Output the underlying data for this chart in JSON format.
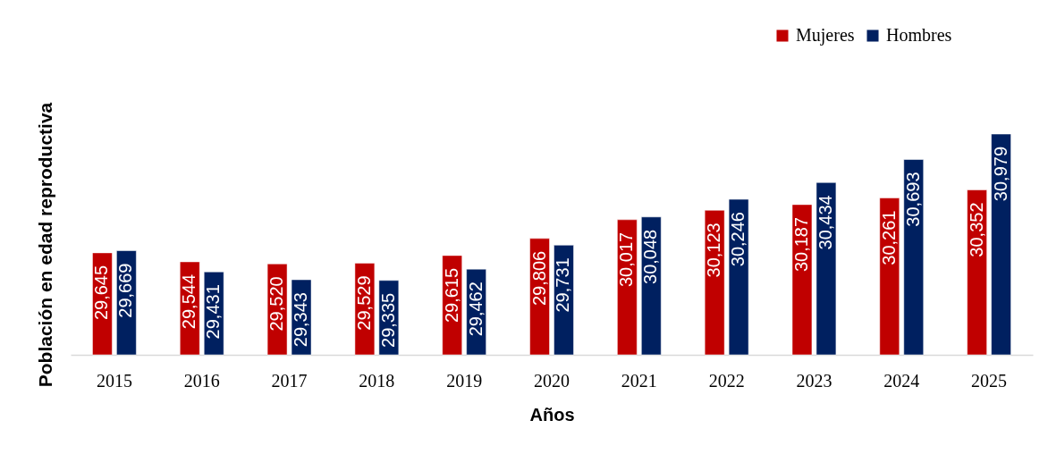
{
  "chart_data": {
    "type": "bar",
    "xlabel": "Años",
    "ylabel": "Población en edad reproductiva",
    "categories": [
      "2015",
      "2016",
      "2017",
      "2018",
      "2019",
      "2020",
      "2021",
      "2022",
      "2023",
      "2024",
      "2025"
    ],
    "series": [
      {
        "name": "Mujeres",
        "color": "#c00000",
        "values": [
          29645,
          29544,
          29520,
          29529,
          29615,
          29806,
          30017,
          30123,
          30187,
          30261,
          30352
        ],
        "value_labels": [
          "29,645",
          "29,544",
          "29,520",
          "29,529",
          "29,615",
          "29,806",
          "30,017",
          "30,123",
          "30,187",
          "30,261",
          "30,352"
        ]
      },
      {
        "name": "Hombres",
        "color": "#002060",
        "values": [
          29669,
          29431,
          29343,
          29335,
          29462,
          29731,
          30048,
          30246,
          30434,
          30693,
          30979
        ],
        "value_labels": [
          "29,669",
          "29,431",
          "29,343",
          "29,335",
          "29,462",
          "29,731",
          "30,048",
          "30,246",
          "30,434",
          "30,693",
          "30,979"
        ]
      }
    ],
    "ylim": [
      28500,
      30979
    ],
    "tick_labels": "x",
    "legend": "top right",
    "grid": false
  }
}
